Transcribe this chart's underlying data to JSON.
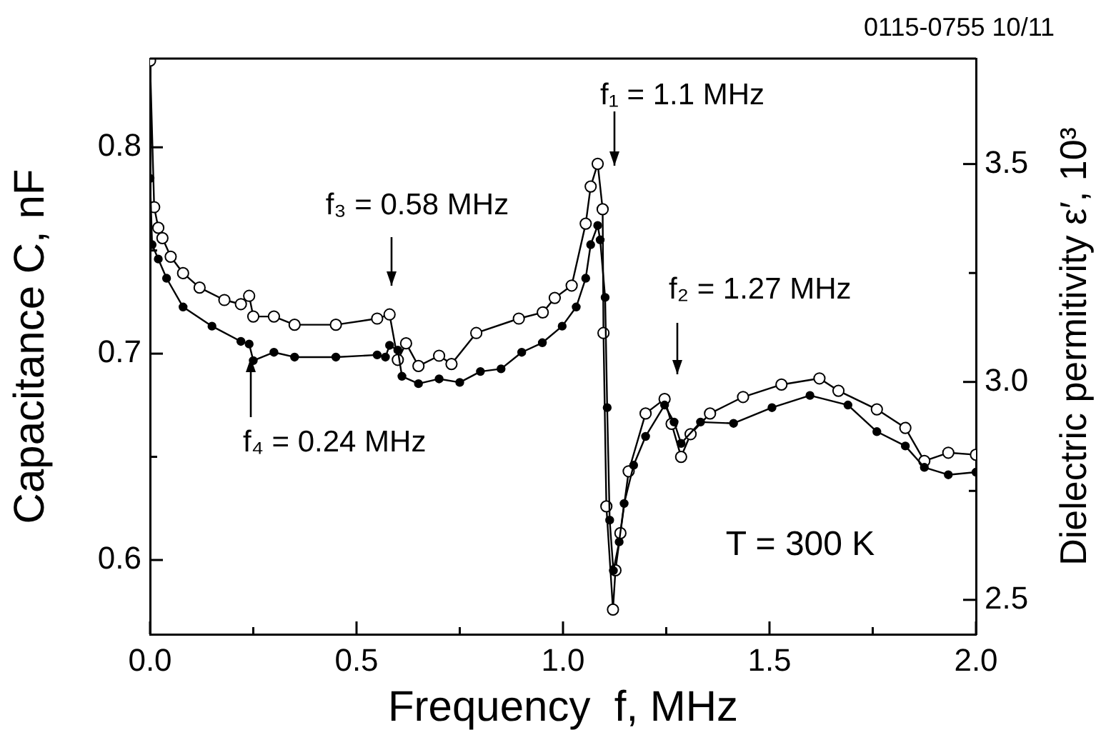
{
  "chart_data": {
    "type": "line",
    "xlabel": "Frequency  f, MHz",
    "ylabel": "Capacitance C, nF",
    "y2label": "Dielectric permitivity ε′, 10³",
    "xlim": [
      0,
      2
    ],
    "xticks": [
      {
        "value": 0,
        "label": "0.0"
      },
      {
        "value": 0.25,
        "label": null
      },
      {
        "value": 0.5,
        "label": "0.5"
      },
      {
        "value": 0.75,
        "label": null
      },
      {
        "value": 1,
        "label": "1.0"
      },
      {
        "value": 1.25,
        "label": null
      },
      {
        "value": 1.5,
        "label": "1.5"
      },
      {
        "value": 1.75,
        "label": null
      },
      {
        "value": 2,
        "label": "2.0"
      }
    ],
    "ylim": [
      0.564,
      0.843
    ],
    "yticks": [
      0.6,
      {
        "value": 0.65,
        "label": null
      },
      0.7,
      {
        "value": 0.75,
        "label": null
      },
      0.8
    ],
    "y2lim": [
      2.421,
      3.742
    ],
    "y2ticks": [
      2.5,
      {
        "value": 2.75,
        "label": null
      },
      {
        "value": 3,
        "label": "3.0"
      },
      {
        "value": 3.25,
        "label": null
      },
      3.5
    ],
    "grid": false,
    "legend": false,
    "marker": "circle",
    "line_style": "solid",
    "annotations": [
      "f₁ = 1.1 MHz",
      "f₂ = 1.27 MHz",
      "f₃ = 0.58 MHz",
      {
        "text": "f₄ = 0.24 MHz",
        "x": 0.244,
        "y": 0.698
      },
      "T = 300 K",
      "0115-0755 10/11"
    ],
    "series": [
      {
        "color": "#000000",
        "axis": "y",
        "x": [
          0,
          0.01,
          0.02,
          0.03,
          0.05,
          0.08,
          0.12,
          0.18,
          0.22,
          0.24,
          0.25,
          0.3,
          0.35,
          0.45,
          0.55,
          0.58,
          0.6,
          0.62,
          0.65,
          0.7,
          0.73,
          0.79,
          0.893,
          0.951,
          0.98,
          1.021,
          1.055,
          1.067,
          1.084,
          1.096,
          1.098,
          1.105,
          1.121,
          1.127,
          1.139,
          1.159,
          1.2,
          1.246,
          1.263,
          1.286,
          1.309,
          1.356,
          1.436,
          1.529,
          1.621,
          1.667,
          1.76,
          1.829,
          1.875,
          1.933,
          2.0
        ],
        "values": [
          0.842,
          0.771,
          0.761,
          0.756,
          0.747,
          0.739,
          0.732,
          0.726,
          0.724,
          0.728,
          0.718,
          0.718,
          0.714,
          0.714,
          0.717,
          0.719,
          0.697,
          0.705,
          0.694,
          0.699,
          0.695,
          0.71,
          0.717,
          0.72,
          0.727,
          0.733,
          0.763,
          0.781,
          0.792,
          0.77,
          0.71,
          0.626,
          0.576,
          0.595,
          0.613,
          0.643,
          0.671,
          0.678,
          0.666,
          0.65,
          0.661,
          0.671,
          0.679,
          0.685,
          0.688,
          0.682,
          0.673,
          0.664,
          0.648,
          0.652,
          0.651
        ]
      },
      {
        "color": "#000000",
        "axis": "y2",
        "x": [
          0,
          0.005,
          0.02,
          0.04,
          0.08,
          0.15,
          0.22,
          0.24,
          0.25,
          0.3,
          0.35,
          0.45,
          0.55,
          0.57,
          0.58,
          0.6,
          0.61,
          0.65,
          0.7,
          0.75,
          0.8,
          0.85,
          0.9,
          0.95,
          0.998,
          1.032,
          1.055,
          1.067,
          1.084,
          1.09,
          1.102,
          1.107,
          1.113,
          1.122,
          1.136,
          1.148,
          1.171,
          1.2,
          1.246,
          1.269,
          1.286,
          1.333,
          1.413,
          1.506,
          1.598,
          1.69,
          1.76,
          1.829,
          1.875,
          1.933,
          2.0
        ],
        "values": [
          3.467,
          3.315,
          3.282,
          3.238,
          3.172,
          3.128,
          3.093,
          3.087,
          3.049,
          3.068,
          3.057,
          3.057,
          3.062,
          3.057,
          3.084,
          3.073,
          3.013,
          2.996,
          3.007,
          2.999,
          3.024,
          3.03,
          3.068,
          3.09,
          3.128,
          3.172,
          3.238,
          3.315,
          3.359,
          3.326,
          3.194,
          2.941,
          2.683,
          2.567,
          2.633,
          2.721,
          2.809,
          2.875,
          2.947,
          2.908,
          2.859,
          2.908,
          2.905,
          2.941,
          2.969,
          2.947,
          2.886,
          2.853,
          2.804,
          2.787,
          2.793
        ]
      }
    ]
  }
}
